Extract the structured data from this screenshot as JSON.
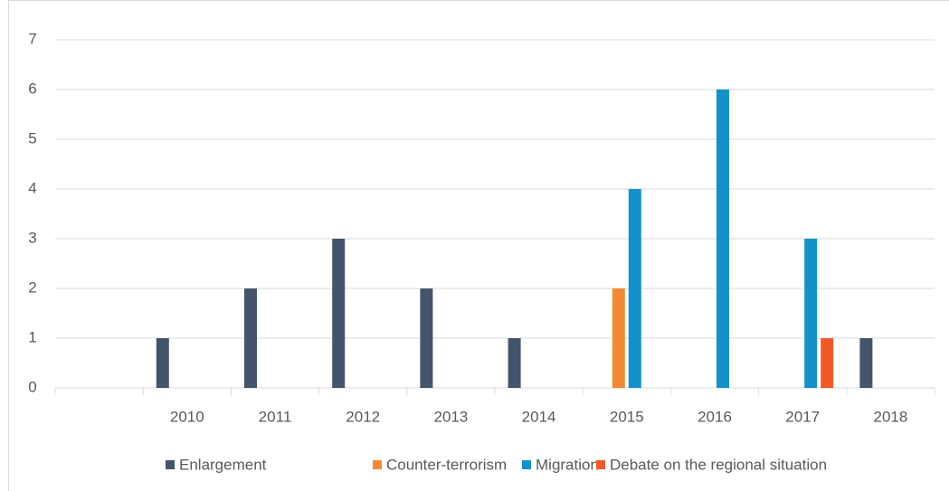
{
  "chart_data": {
    "type": "bar",
    "categories": [
      null,
      "2010",
      "2011",
      "2012",
      "2013",
      "2014",
      "2015",
      "2016",
      "2017",
      "2018"
    ],
    "series": [
      {
        "name": "Enlargement",
        "color": "#44546a",
        "values": [
          null,
          1,
          2,
          3,
          2,
          1,
          null,
          null,
          null,
          1
        ]
      },
      {
        "name": "Counter-terrorism",
        "color": "#f08a36",
        "values": [
          null,
          null,
          null,
          null,
          null,
          null,
          2,
          null,
          null,
          null
        ]
      },
      {
        "name": "Migration",
        "color": "#1591c9",
        "values": [
          null,
          null,
          null,
          null,
          null,
          null,
          4,
          6,
          3,
          null
        ]
      },
      {
        "name": "Debate on the regional situation",
        "color": "#f05a28",
        "values": [
          null,
          null,
          null,
          null,
          null,
          null,
          null,
          null,
          1,
          null
        ]
      }
    ],
    "ylim": [
      0,
      7
    ],
    "yticks": [
      0,
      1,
      2,
      3,
      4,
      5,
      6,
      7
    ],
    "grid": true,
    "legend": "bottom"
  }
}
